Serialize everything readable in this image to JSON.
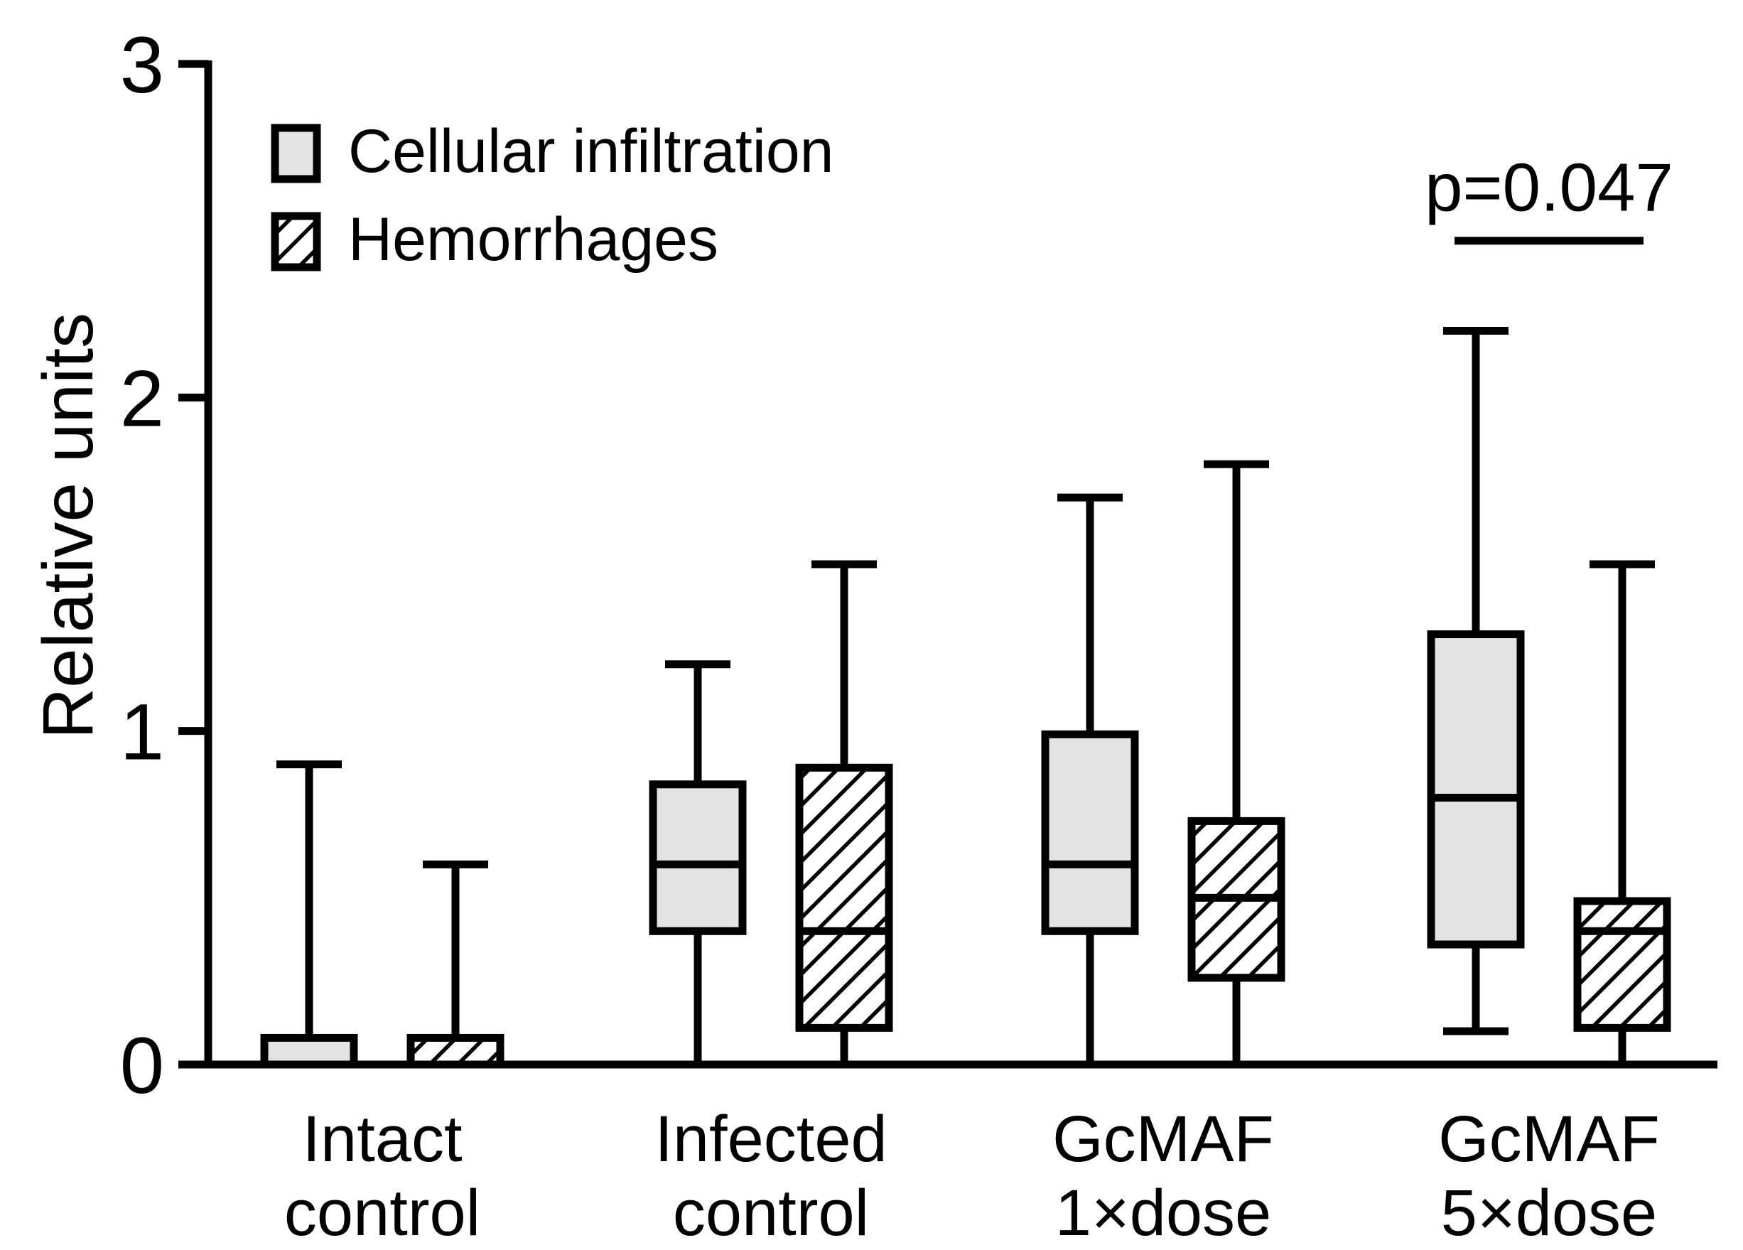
{
  "chart_data": {
    "type": "box",
    "ylabel": "Relative units",
    "ylim": [
      0,
      3
    ],
    "yticks": [
      "0",
      "1",
      "2",
      "3"
    ],
    "groups": [
      {
        "label_lines": [
          "Intact",
          "control"
        ]
      },
      {
        "label_lines": [
          "Infected",
          "control"
        ]
      },
      {
        "label_lines": [
          "GcMAF",
          "1×dose"
        ]
      },
      {
        "label_lines": [
          "GcMAF",
          "5×dose"
        ]
      }
    ],
    "series": [
      {
        "name": "Cellular infiltration",
        "fill": "solid",
        "color": "#e3e3e3",
        "boxes": [
          {
            "min": 0,
            "q1": 0,
            "median": 0,
            "q3": 0.08,
            "max": 0.9
          },
          {
            "min": 0,
            "q1": 0.4,
            "median": 0.6,
            "q3": 0.84,
            "max": 1.2
          },
          {
            "min": 0,
            "q1": 0.4,
            "median": 0.6,
            "q3": 0.99,
            "max": 1.7
          },
          {
            "min": 0.1,
            "q1": 0.36,
            "median": 0.8,
            "q3": 1.29,
            "max": 2.2
          }
        ]
      },
      {
        "name": "Hemorrhages",
        "fill": "hatched",
        "color": "#ffffff",
        "boxes": [
          {
            "min": 0,
            "q1": 0,
            "median": 0,
            "q3": 0.08,
            "max": 0.6
          },
          {
            "min": 0,
            "q1": 0.11,
            "median": 0.4,
            "q3": 0.89,
            "max": 1.5
          },
          {
            "min": 0,
            "q1": 0.26,
            "median": 0.5,
            "q3": 0.73,
            "max": 1.8
          },
          {
            "min": 0,
            "q1": 0.11,
            "median": 0.4,
            "q3": 0.49,
            "max": 1.5
          }
        ]
      }
    ],
    "annotations": [
      {
        "text": "p=0.047",
        "group_index": 3,
        "y": 2.47
      }
    ],
    "legend_position": "top-left"
  }
}
